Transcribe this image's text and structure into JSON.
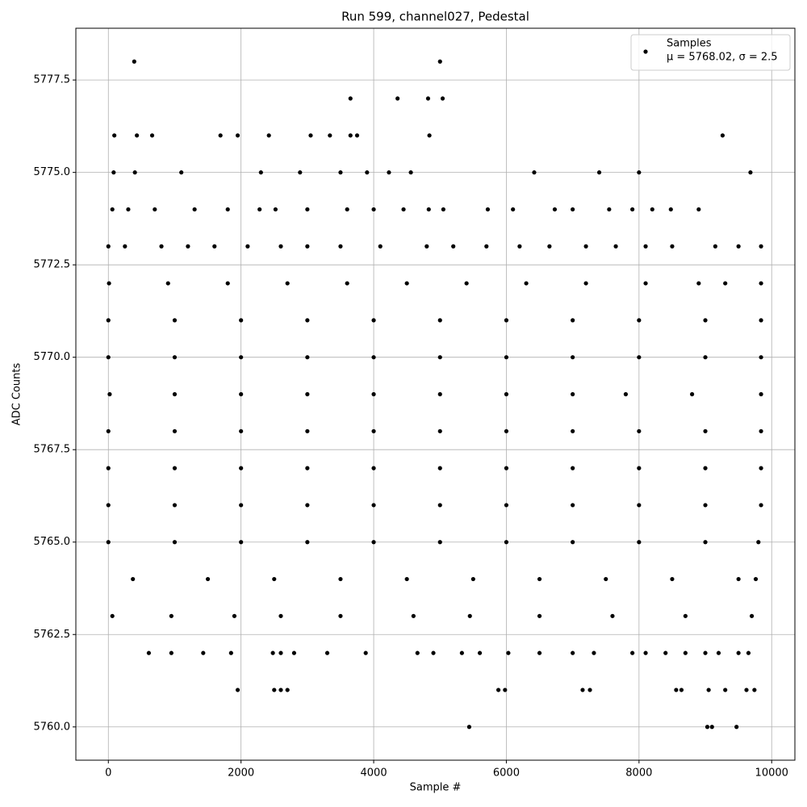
{
  "chart_data": {
    "type": "scatter",
    "title": "Run 599, channel027, Pedestal",
    "xlabel": "Sample #",
    "ylabel": "ADC Counts",
    "legend_position": "upper right",
    "legend_text": "μ = 5768.02, σ = 2.5",
    "grid": true,
    "xlim": [
      -490,
      10350
    ],
    "ylim": [
      5759.1,
      5778.9
    ],
    "xticks": [
      0,
      2000,
      4000,
      6000,
      8000,
      10000
    ],
    "yticks": [
      {
        "value": 5760,
        "label": "5760.0"
      },
      {
        "value": 5762.5,
        "label": "5762.5"
      },
      {
        "value": 5765,
        "label": "5765.0"
      },
      {
        "value": 5767.5,
        "label": "5767.5"
      },
      {
        "value": 5770,
        "label": "5770.0"
      },
      {
        "value": 5772.5,
        "label": "5772.5"
      },
      {
        "value": 5775,
        "label": "5775.0"
      },
      {
        "value": 5777.5,
        "label": "5777.5"
      }
    ],
    "series": [
      {
        "name": "Samples",
        "color": "#000000",
        "x": [
          390,
          5000,
          3650,
          4360,
          4820,
          5040,
          90,
          430,
          660,
          1690,
          1950,
          2420,
          3050,
          3340,
          3650,
          3750,
          4840,
          9260,
          80,
          400,
          1100,
          2300,
          2890,
          3500,
          3900,
          4230,
          4560,
          6420,
          7400,
          8000,
          9680,
          60,
          300,
          700,
          1300,
          1800,
          2280,
          2520,
          3000,
          3600,
          4000,
          4450,
          4830,
          5050,
          5720,
          6100,
          6730,
          7000,
          7550,
          7900,
          8200,
          8480,
          8900,
          0,
          250,
          800,
          1200,
          1600,
          2100,
          2600,
          3000,
          3500,
          4100,
          4800,
          5200,
          5700,
          6200,
          6650,
          7200,
          7650,
          8100,
          8500,
          9150,
          9500,
          9840,
          10,
          900,
          1800,
          2700,
          3600,
          4500,
          5400,
          6300,
          7200,
          8100,
          8900,
          9300,
          9840,
          0,
          1000,
          2000,
          3000,
          4000,
          5000,
          6000,
          7000,
          8000,
          9000,
          9840,
          0,
          1000,
          2000,
          3000,
          4000,
          5000,
          6000,
          7000,
          8000,
          9000,
          9840,
          20,
          1000,
          2000,
          3000,
          4000,
          5000,
          6000,
          7000,
          7800,
          8800,
          9840,
          0,
          1000,
          2000,
          3000,
          4000,
          5000,
          6000,
          7000,
          8000,
          9000,
          9840,
          0,
          1000,
          2000,
          3000,
          4000,
          5000,
          6000,
          7000,
          8000,
          9000,
          9840,
          0,
          1000,
          2000,
          3000,
          4000,
          5000,
          6000,
          7000,
          8000,
          9000,
          9840,
          0,
          1000,
          2000,
          3000,
          4000,
          5000,
          6000,
          7000,
          8000,
          9000,
          9800,
          370,
          1500,
          2500,
          3500,
          4500,
          5500,
          6500,
          7500,
          8500,
          9500,
          9760,
          60,
          950,
          1900,
          2600,
          3500,
          4600,
          5450,
          6500,
          7600,
          8700,
          9700,
          610,
          950,
          1430,
          1850,
          2480,
          2600,
          2800,
          3300,
          3880,
          4660,
          4900,
          5330,
          5600,
          6030,
          6500,
          7000,
          7320,
          7900,
          8100,
          8400,
          8700,
          9000,
          9200,
          9500,
          9650,
          1950,
          2500,
          2600,
          2700,
          5880,
          5980,
          7150,
          7260,
          8560,
          8640,
          9050,
          9300,
          9620,
          9740,
          5440,
          9030,
          9100,
          9470
        ],
        "values": [
          5778,
          5778,
          5777,
          5777,
          5777,
          5777,
          5776,
          5776,
          5776,
          5776,
          5776,
          5776,
          5776,
          5776,
          5776,
          5776,
          5776,
          5776,
          5775,
          5775,
          5775,
          5775,
          5775,
          5775,
          5775,
          5775,
          5775,
          5775,
          5775,
          5775,
          5775,
          5774,
          5774,
          5774,
          5774,
          5774,
          5774,
          5774,
          5774,
          5774,
          5774,
          5774,
          5774,
          5774,
          5774,
          5774,
          5774,
          5774,
          5774,
          5774,
          5774,
          5774,
          5774,
          5773,
          5773,
          5773,
          5773,
          5773,
          5773,
          5773,
          5773,
          5773,
          5773,
          5773,
          5773,
          5773,
          5773,
          5773,
          5773,
          5773,
          5773,
          5773,
          5773,
          5773,
          5773,
          5772,
          5772,
          5772,
          5772,
          5772,
          5772,
          5772,
          5772,
          5772,
          5772,
          5772,
          5772,
          5772,
          5771,
          5771,
          5771,
          5771,
          5771,
          5771,
          5771,
          5771,
          5771,
          5771,
          5771,
          5770,
          5770,
          5770,
          5770,
          5770,
          5770,
          5770,
          5770,
          5770,
          5770,
          5770,
          5769,
          5769,
          5769,
          5769,
          5769,
          5769,
          5769,
          5769,
          5769,
          5769,
          5769,
          5768,
          5768,
          5768,
          5768,
          5768,
          5768,
          5768,
          5768,
          5768,
          5768,
          5768,
          5767,
          5767,
          5767,
          5767,
          5767,
          5767,
          5767,
          5767,
          5767,
          5767,
          5767,
          5766,
          5766,
          5766,
          5766,
          5766,
          5766,
          5766,
          5766,
          5766,
          5766,
          5766,
          5765,
          5765,
          5765,
          5765,
          5765,
          5765,
          5765,
          5765,
          5765,
          5765,
          5765,
          5764,
          5764,
          5764,
          5764,
          5764,
          5764,
          5764,
          5764,
          5764,
          5764,
          5764,
          5763,
          5763,
          5763,
          5763,
          5763,
          5763,
          5763,
          5763,
          5763,
          5763,
          5763,
          5762,
          5762,
          5762,
          5762,
          5762,
          5762,
          5762,
          5762,
          5762,
          5762,
          5762,
          5762,
          5762,
          5762,
          5762,
          5762,
          5762,
          5762,
          5762,
          5762,
          5762,
          5762,
          5762,
          5762,
          5762,
          5761,
          5761,
          5761,
          5761,
          5761,
          5761,
          5761,
          5761,
          5761,
          5761,
          5761,
          5761,
          5761,
          5761,
          5760,
          5760,
          5760,
          5760
        ]
      }
    ]
  }
}
